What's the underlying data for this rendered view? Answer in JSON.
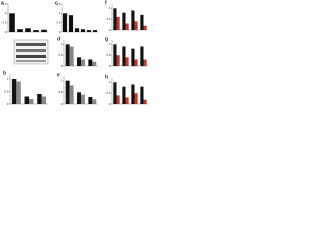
{
  "chart_data": [
    {
      "type": "bar",
      "panel": "a",
      "categories": [
        null,
        null,
        null,
        null,
        null
      ],
      "series": [
        {
          "color": "#111111",
          "values": [
            1,
            0.15,
            0.2,
            0.1,
            0.12
          ]
        }
      ],
      "ylim": [
        0,
        1.5
      ],
      "yticks": [
        0,
        0.5,
        1,
        1.5
      ]
    },
    {
      "type": "bar",
      "panel": "c",
      "categories": [
        null,
        null,
        null,
        null,
        null,
        null
      ],
      "series": [
        {
          "color": "#111111",
          "values": [
            1,
            0.9,
            0.2,
            0.15,
            0.1,
            0.1
          ]
        }
      ],
      "ylim": [
        0,
        1.5
      ],
      "yticks": [
        0,
        0.5,
        1,
        1.5
      ]
    },
    {
      "type": "bar",
      "panel": "d",
      "categories": [
        null,
        null,
        null
      ],
      "series": [
        {
          "color": "#111111",
          "values": [
            1,
            0.4,
            0.3
          ]
        },
        {
          "color": "#888888",
          "values": [
            0.9,
            0.3,
            0.2
          ]
        }
      ],
      "ylim": [
        0,
        1.2
      ],
      "yticks": [
        0,
        0.5,
        1
      ]
    },
    {
      "type": "bar",
      "panel": "b",
      "categories": [
        null,
        null,
        null
      ],
      "series": [
        {
          "color": "#111111",
          "values": [
            1,
            0.3,
            0.4
          ]
        },
        {
          "color": "#888888",
          "values": [
            0.9,
            0.2,
            0.3
          ]
        }
      ],
      "ylim": [
        0,
        1.2
      ],
      "yticks": [
        0,
        0.5,
        1
      ]
    },
    {
      "type": "bar",
      "panel": "e",
      "categories": [
        null,
        null,
        null
      ],
      "series": [
        {
          "color": "#111111",
          "values": [
            1,
            0.5,
            0.3
          ]
        },
        {
          "color": "#888888",
          "values": [
            0.8,
            0.4,
            0.2
          ]
        }
      ],
      "ylim": [
        0,
        1.2
      ],
      "yticks": [
        0,
        0.5,
        1
      ]
    },
    {
      "type": "bar",
      "panel": "f",
      "categories": [
        null,
        null,
        null,
        null
      ],
      "series": [
        {
          "color": "#111111",
          "values": [
            1,
            0.8,
            0.9,
            0.7
          ]
        },
        {
          "color": "#c0392b",
          "values": [
            0.6,
            0.3,
            0.4,
            0.2
          ]
        }
      ],
      "ylim": [
        0,
        1.2
      ],
      "yticks": [
        0,
        0.5,
        1
      ]
    },
    {
      "type": "bar",
      "panel": "g",
      "categories": [
        null,
        null,
        null,
        null
      ],
      "series": [
        {
          "color": "#111111",
          "values": [
            1,
            0.9,
            0.8,
            0.9
          ]
        },
        {
          "color": "#c0392b",
          "values": [
            0.5,
            0.4,
            0.3,
            0.3
          ]
        }
      ],
      "ylim": [
        0,
        1.2
      ],
      "yticks": [
        0,
        0.5,
        1
      ]
    },
    {
      "type": "bar",
      "panel": "h",
      "categories": [
        null,
        null,
        null,
        null
      ],
      "series": [
        {
          "color": "#111111",
          "values": [
            1,
            0.8,
            0.9,
            0.8
          ]
        },
        {
          "color": "#c0392b",
          "values": [
            0.4,
            0.3,
            0.5,
            0.2
          ]
        }
      ],
      "ylim": [
        0,
        1.2
      ],
      "yticks": [
        0,
        0.5,
        1
      ]
    }
  ]
}
